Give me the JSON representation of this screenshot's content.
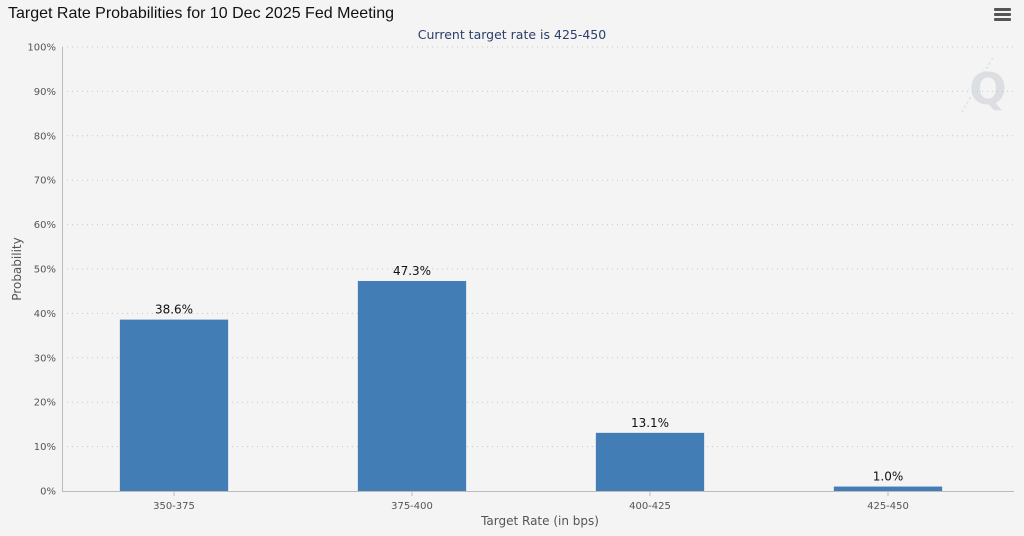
{
  "header": {
    "title": "Target Rate Probabilities for 10 Dec 2025 Fed Meeting",
    "subtitle": "Current target rate is 425-450"
  },
  "chart_data": {
    "type": "bar",
    "title": "Target Rate Probabilities for 10 Dec 2025 Fed Meeting",
    "subtitle": "Current target rate is 425-450",
    "xlabel": "Target Rate (in bps)",
    "ylabel": "Probability",
    "categories": [
      "350-375",
      "375-400",
      "400-425",
      "425-450"
    ],
    "values": [
      38.6,
      47.3,
      13.1,
      1.0
    ],
    "data_labels": [
      "38.6%",
      "47.3%",
      "13.1%",
      "1.0%"
    ],
    "ylim": [
      0,
      100
    ],
    "y_ticks": [
      "0%",
      "10%",
      "20%",
      "30%",
      "40%",
      "50%",
      "60%",
      "70%",
      "80%",
      "90%",
      "100%"
    ],
    "grid": "horizontal dotted",
    "legend": "none",
    "bar_color": "#427db5"
  },
  "icons": {
    "menu": "hamburger-menu-icon",
    "watermark": "q-logo-icon"
  }
}
